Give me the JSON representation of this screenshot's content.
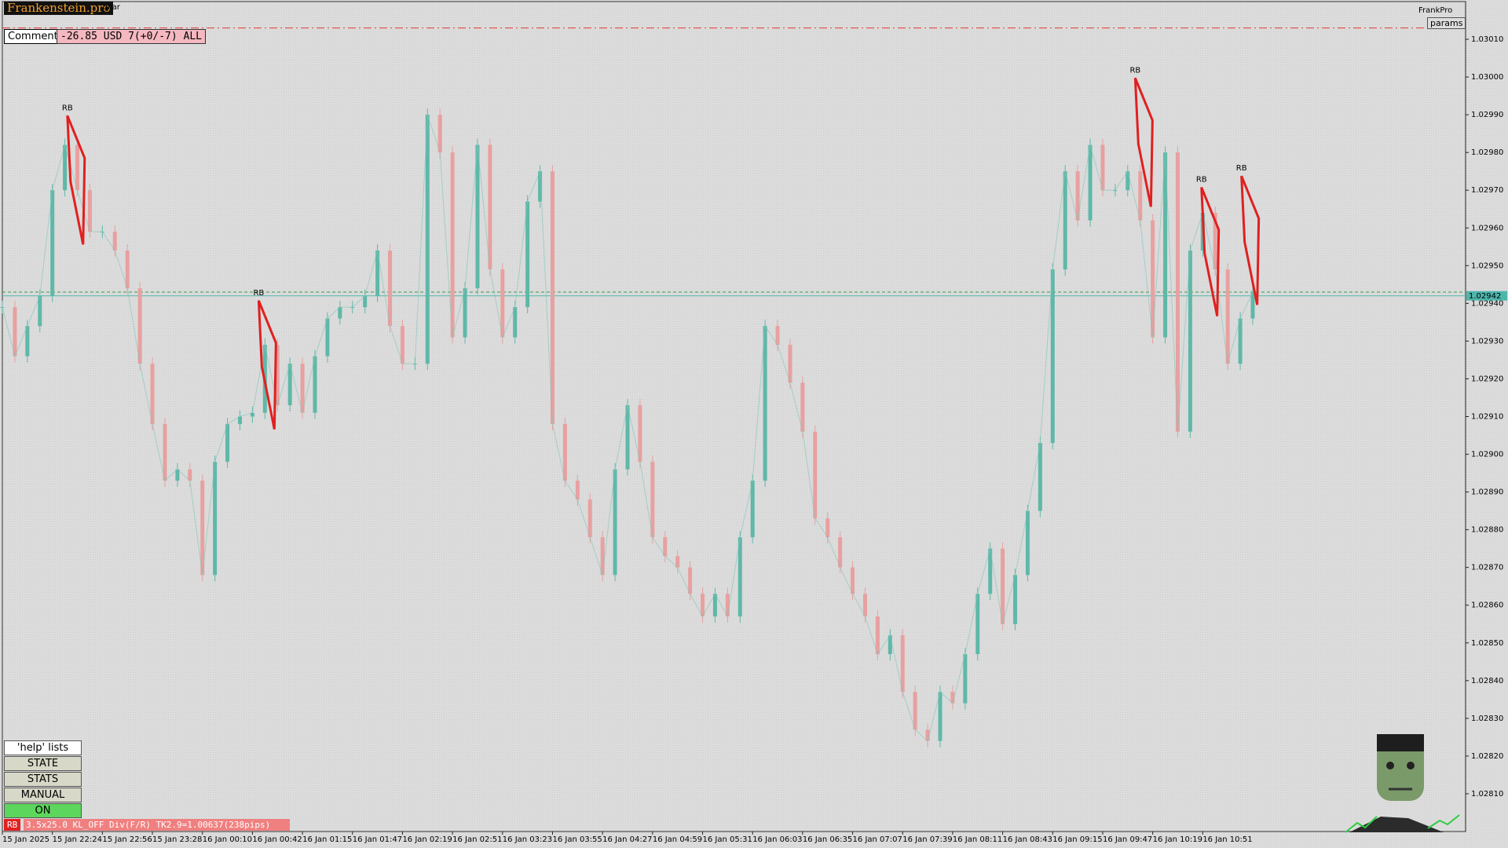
{
  "chart_data": {
    "type": "candlestick",
    "categories": [
      "15 Jan 2025",
      null,
      null,
      null,
      "15 Jan 22:24",
      null,
      null,
      null,
      "15 Jan 22:56",
      null,
      null,
      null,
      "15 Jan 23:28",
      null,
      null,
      null,
      "16 Jan 00:10",
      null,
      null,
      null,
      "16 Jan 00:42",
      null,
      null,
      null,
      "16 Jan 01:15",
      null,
      null,
      null,
      "16 Jan 01:47",
      null,
      null,
      null,
      "16 Jan 02:19",
      null,
      null,
      null,
      "16 Jan 02:51",
      null,
      null,
      null,
      "16 Jan 03:23",
      null,
      null,
      null,
      "16 Jan 03:55",
      null,
      null,
      null,
      "16 Jan 04:27",
      null,
      null,
      null,
      "16 Jan 04:59",
      null,
      null,
      null,
      "16 Jan 05:31",
      null,
      null,
      null,
      "16 Jan 06:03",
      null,
      null,
      null,
      "16 Jan 06:35",
      null,
      null,
      null,
      "16 Jan 07:07",
      null,
      null,
      null,
      "16 Jan 07:39",
      null,
      null,
      null,
      "16 Jan 08:11",
      null,
      null,
      null,
      "16 Jan 08:43",
      null,
      null,
      null,
      "16 Jan 09:15",
      null,
      null,
      null,
      "16 Jan 09:47",
      null,
      null,
      null,
      "16 Jan 10:19",
      null,
      null,
      null,
      "16 Jan 10:51",
      null,
      null,
      null,
      null
    ],
    "close": [
      1.02939,
      1.02926,
      1.02934,
      1.02942,
      1.0297,
      1.02982,
      1.0297,
      1.02959,
      1.02959,
      1.02954,
      1.02944,
      1.02924,
      1.02908,
      1.02893,
      1.02896,
      1.02893,
      1.02868,
      1.02898,
      1.02908,
      1.0291,
      1.02911,
      1.02929,
      1.02913,
      1.02924,
      1.02911,
      1.02926,
      1.02936,
      1.02939,
      1.02939,
      1.02942,
      1.02954,
      1.02934,
      1.02924,
      1.02924,
      1.0299,
      1.0298,
      1.02931,
      1.02944,
      1.02982,
      1.02949,
      1.02931,
      1.02939,
      1.02967,
      1.02975,
      1.02908,
      1.02893,
      1.02888,
      1.02878,
      1.02868,
      1.02896,
      1.02913,
      1.02898,
      1.02878,
      1.02873,
      1.0287,
      1.02863,
      1.02857,
      1.02863,
      1.02857,
      1.02878,
      1.02893,
      1.02934,
      1.02929,
      1.02919,
      1.02906,
      1.02883,
      1.02878,
      1.0287,
      1.02863,
      1.02857,
      1.02847,
      1.02852,
      1.02837,
      1.02827,
      1.02824,
      1.02837,
      1.02834,
      1.02847,
      1.02863,
      1.02875,
      1.02855,
      1.02868,
      1.02885,
      1.02903,
      1.02949,
      1.02975,
      1.02962,
      1.02982,
      1.0297,
      1.0297,
      1.02975,
      1.02962,
      1.02931,
      1.0298,
      1.02906,
      1.02954,
      1.02964,
      1.02949,
      1.02924,
      1.02936,
      1.02943
    ],
    "up_color": "#5fb8a8",
    "down_color": "#e8a0a0",
    "ylim": [
      1.028,
      1.0302
    ],
    "yticks": [
      {
        "value": 1.0281,
        "label": "1.02810"
      },
      {
        "value": 1.0282,
        "label": "1.02820"
      },
      {
        "value": 1.0283,
        "label": "1.02830"
      },
      {
        "value": 1.0284,
        "label": "1.02840"
      },
      {
        "value": 1.0285,
        "label": "1.02850"
      },
      {
        "value": 1.0286,
        "label": "1.02860"
      },
      {
        "value": 1.0287,
        "label": "1.02870"
      },
      {
        "value": 1.0288,
        "label": "1.02880"
      },
      {
        "value": 1.0289,
        "label": "1.02890"
      },
      {
        "value": 1.029,
        "label": "1.02900"
      },
      {
        "value": 1.0291,
        "label": "1.02910"
      },
      {
        "value": 1.0292,
        "label": "1.02920"
      },
      {
        "value": 1.0293,
        "label": "1.02930"
      },
      {
        "value": 1.0294,
        "label": "1.02940"
      },
      {
        "value": 1.0295,
        "label": "1.02950"
      },
      {
        "value": 1.0296,
        "label": "1.02960"
      },
      {
        "value": 1.0297,
        "label": "1.02970"
      },
      {
        "value": 1.0298,
        "label": "1.02980"
      },
      {
        "value": 1.0299,
        "label": "1.02990"
      },
      {
        "value": 1.03,
        "label": "1.03000"
      },
      {
        "value": 1.0301,
        "label": "1.03010"
      }
    ],
    "grid": false,
    "hlines": [
      {
        "value": 1.02942,
        "color": "#4db6ac",
        "style": "solid",
        "label": "1.02942"
      },
      {
        "value": 1.02943,
        "color": "#3a9a50",
        "style": "dashed"
      },
      {
        "value": 1.03013,
        "color": "#e53935",
        "style": "dashdot"
      }
    ],
    "annotations": [
      {
        "text": "RB",
        "x": 5.2,
        "y": 1.02991
      },
      {
        "text": "RB",
        "x": 20.5,
        "y": 1.02942
      },
      {
        "text": "RB",
        "x": 90.6,
        "y": 1.03001
      },
      {
        "text": "RB",
        "x": 95.9,
        "y": 1.02972
      },
      {
        "text": "RB",
        "x": 99.1,
        "y": 1.02975
      }
    ],
    "annotation_color": "#e02020"
  },
  "ui": {
    "logo": "Frankenstein.pro",
    "symbol_fragment": "ollar",
    "comment_label": "Comment",
    "comment_value": "-26.85 USD 7(+0/-7) ALL",
    "brand": "FrankPro",
    "params_button": "params",
    "buttons": [
      "'help' lists cmds",
      "STATE",
      "STATS",
      "MANUAL",
      "ON"
    ],
    "status_tag": "RB",
    "status_text": "3.5x25.0 KL_OFF Div(F/R) TK2.9=1.00637(238pips)"
  }
}
